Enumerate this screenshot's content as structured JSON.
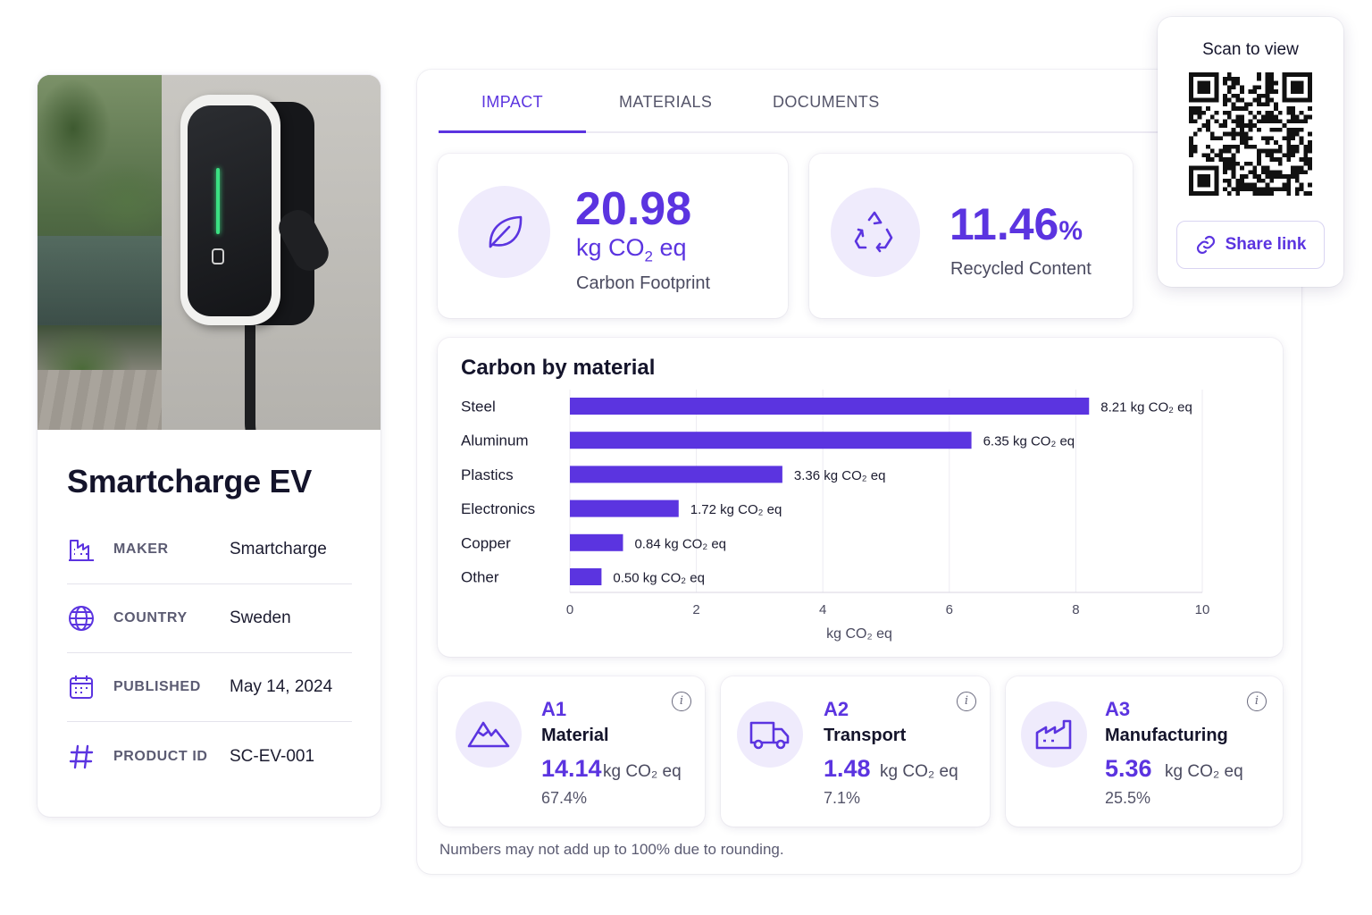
{
  "product": {
    "name": "Smartcharge EV",
    "specs": [
      {
        "label": "MAKER",
        "value": "Smartcharge",
        "icon": "factory-icon"
      },
      {
        "label": "COUNTRY",
        "value": "Sweden",
        "icon": "globe-icon"
      },
      {
        "label": "PUBLISHED",
        "value": "May 14, 2024",
        "icon": "calendar-icon"
      },
      {
        "label": "PRODUCT ID",
        "value": "SC-EV-001",
        "icon": "hash-icon"
      }
    ]
  },
  "tabs": [
    {
      "label": "IMPACT",
      "active": true
    },
    {
      "label": "MATERIALS",
      "active": false
    },
    {
      "label": "DOCUMENTS",
      "active": false
    }
  ],
  "metrics": {
    "carbon": {
      "value": "20.98",
      "unit_prefix": "kg CO",
      "unit_sub": "2",
      "unit_suffix": " eq",
      "label": "Carbon Footprint",
      "icon": "leaf-icon"
    },
    "recycled": {
      "value": "11.46",
      "unit": "%",
      "label": "Recycled Content",
      "icon": "recycle-icon"
    }
  },
  "chart_data": {
    "type": "bar",
    "orientation": "horizontal",
    "title": "Carbon by material",
    "categories": [
      "Steel",
      "Aluminum",
      "Plastics",
      "Electronics",
      "Copper",
      "Other"
    ],
    "values": [
      8.21,
      6.35,
      3.36,
      1.72,
      0.84,
      0.5
    ],
    "value_labels": [
      "8.21 kg CO₂ eq",
      "6.35 kg CO₂ eq",
      "3.36 kg CO₂ eq",
      "1.72 kg CO₂ eq",
      "0.84 kg CO₂ eq",
      "0.50 kg CO₂ eq"
    ],
    "xlabel": "kg CO₂ eq",
    "xlim": [
      0,
      10
    ],
    "xticks": [
      0,
      2,
      4,
      6,
      8,
      10
    ],
    "grid": true,
    "bar_color": "#5b34e0"
  },
  "stages": [
    {
      "code": "A1",
      "name": "Material",
      "value": "14.14",
      "unit": "kg CO₂ eq",
      "percent": "67.4%",
      "icon": "mountain-icon"
    },
    {
      "code": "A2",
      "name": "Transport",
      "value": "1.48",
      "unit": "kg CO₂ eq",
      "percent": "7.1%",
      "icon": "truck-icon"
    },
    {
      "code": "A3",
      "name": "Manufacturing",
      "value": "5.36",
      "unit": "kg CO₂ eq",
      "percent": "25.5%",
      "icon": "factory-icon"
    }
  ],
  "footnote": "Numbers may not add up to 100% due to rounding.",
  "qr": {
    "title": "Scan to view",
    "share_label": "Share link"
  },
  "colors": {
    "accent": "#5b34e0",
    "accent_light": "#efebfc",
    "text": "#14142b"
  }
}
